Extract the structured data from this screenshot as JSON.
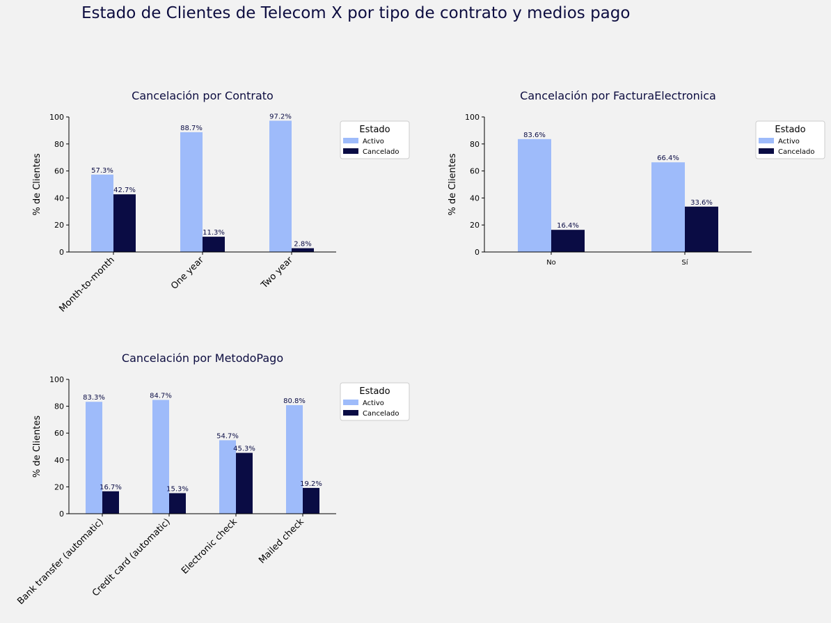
{
  "suptitle": "Estado de Clientes de Telecom X por tipo de contrato y medios pago",
  "colors": {
    "activo": "#9ebbfa",
    "cancelado": "#0a0c44",
    "title": "#0d0d40",
    "label_text": "#0a0c44"
  },
  "chart_data": [
    {
      "type": "bar",
      "title": "Cancelación por Contrato",
      "ylabel": "% de Clientes",
      "xlabel": "",
      "ylim": [
        0,
        100
      ],
      "yticks": [
        0,
        20,
        40,
        60,
        80,
        100
      ],
      "grid": false,
      "xtick_rotation": 45,
      "categories": [
        "Month-to-month",
        "One year",
        "Two year"
      ],
      "series": [
        {
          "name": "Activo",
          "values": [
            57.3,
            88.7,
            97.2
          ]
        },
        {
          "name": "Cancelado",
          "values": [
            42.7,
            11.3,
            2.8
          ]
        }
      ],
      "data_labels": [
        [
          "57.3%",
          "88.7%",
          "97.2%"
        ],
        [
          "42.7%",
          "11.3%",
          "2.8%"
        ]
      ],
      "legend": {
        "title": "Estado",
        "placement": "outside-top-right"
      }
    },
    {
      "type": "bar",
      "title": "Cancelación por FacturaElectronica",
      "ylabel": "% de Clientes",
      "xlabel": "",
      "ylim": [
        0,
        100
      ],
      "yticks": [
        0,
        20,
        40,
        60,
        80,
        100
      ],
      "grid": false,
      "xtick_rotation": 0,
      "categories": [
        "No",
        "Sí"
      ],
      "series": [
        {
          "name": "Activo",
          "values": [
            83.6,
            66.4
          ]
        },
        {
          "name": "Cancelado",
          "values": [
            16.4,
            33.6
          ]
        }
      ],
      "data_labels": [
        [
          "83.6%",
          "66.4%"
        ],
        [
          "16.4%",
          "33.6%"
        ]
      ],
      "legend": {
        "title": "Estado",
        "placement": "outside-top-right"
      }
    },
    {
      "type": "bar",
      "title": "Cancelación por MetodoPago",
      "ylabel": "% de Clientes",
      "xlabel": "",
      "ylim": [
        0,
        100
      ],
      "yticks": [
        0,
        20,
        40,
        60,
        80,
        100
      ],
      "grid": false,
      "xtick_rotation": 45,
      "categories": [
        "Bank transfer (automatic)",
        "Credit card (automatic)",
        "Electronic check",
        "Mailed check"
      ],
      "series": [
        {
          "name": "Activo",
          "values": [
            83.3,
            84.7,
            54.7,
            80.8
          ]
        },
        {
          "name": "Cancelado",
          "values": [
            16.7,
            15.3,
            45.3,
            19.2
          ]
        }
      ],
      "data_labels": [
        [
          "83.3%",
          "84.7%",
          "54.7%",
          "80.8%"
        ],
        [
          "16.7%",
          "15.3%",
          "45.3%",
          "19.2%"
        ]
      ],
      "legend": {
        "title": "Estado",
        "placement": "outside-top-right"
      }
    }
  ]
}
